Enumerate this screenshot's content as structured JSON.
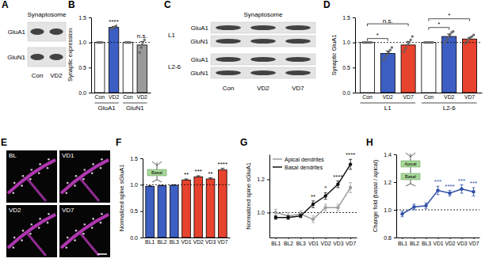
{
  "chart_data": [
    {
      "type": "bar",
      "title": "B",
      "ylabel": "Synaptic expression",
      "categories": [
        "Con",
        "VD2",
        "Con",
        "VD2"
      ],
      "group_labels": [
        "GluA1",
        "GluN1"
      ],
      "values": [
        1,
        1.3,
        1,
        0.95
      ],
      "errors": [
        0,
        0.02,
        0,
        0.07
      ],
      "points": [
        [
          1,
          1,
          1,
          1
        ],
        [
          1.27,
          1.29,
          1.31,
          1.33
        ],
        [
          1,
          1,
          1,
          1
        ],
        [
          0.8,
          0.9,
          1,
          1.05
        ]
      ],
      "colors": [
        "#ffffff",
        "#3d5fc4",
        "#ffffff",
        "#9a9a9a"
      ],
      "ylim": [
        0,
        1.5
      ],
      "yticks": [
        {
          "value": 0,
          "label": "0.0"
        },
        0.5,
        {
          "value": 1,
          "label": "1.0"
        },
        1.5
      ],
      "reference_line": 1,
      "annotations": [
        {
          "text": "****",
          "at": 1
        },
        {
          "text": "n.s.",
          "at": 3
        }
      ]
    },
    {
      "type": "bar",
      "title": "D",
      "ylabel": "Synaptic GluA1",
      "categories": [
        "Con",
        "VD2",
        "VD7",
        "Con",
        "VD2",
        "VD7"
      ],
      "group_labels": [
        "L1",
        "L2-6"
      ],
      "values": [
        1,
        0.78,
        0.95,
        1,
        1.12,
        1.07
      ],
      "errors": [
        0,
        0.05,
        0.07,
        0,
        0.05,
        0.03
      ],
      "points": [
        [
          1,
          1,
          1,
          1,
          1,
          1
        ],
        [
          0.65,
          0.7,
          0.75,
          0.8,
          0.85,
          0.9
        ],
        [
          0.82,
          0.88,
          0.95,
          1,
          1.05,
          1.12
        ],
        [
          1,
          1,
          1,
          1,
          1,
          1
        ],
        [
          1,
          1.05,
          1.1,
          1.15,
          1.2,
          1.22
        ],
        [
          0.98,
          1.02,
          1.06,
          1.1,
          1.12,
          1.15
        ]
      ],
      "colors": [
        "#ffffff",
        "#3d5fc4",
        "#e8432e",
        "#ffffff",
        "#3d5fc4",
        "#e8432e"
      ],
      "ylim": [
        0,
        1.5
      ],
      "yticks": [
        {
          "value": 0,
          "label": "0.0"
        },
        0.5,
        {
          "value": 1,
          "label": "1.0"
        },
        1.5
      ],
      "reference_line": 1,
      "annotations": [
        {
          "text": "*",
          "from": 0,
          "to": 1
        },
        {
          "text": "n.s.",
          "from": 0,
          "to": 2
        },
        {
          "text": "*",
          "from": 3,
          "to": 4
        },
        {
          "text": "*",
          "from": 3,
          "to": 5
        }
      ]
    },
    {
      "type": "bar",
      "title": "F",
      "ylabel": "Normalized spine sGluA1",
      "categories": [
        "BL1",
        "BL2",
        "BL3",
        "VD1",
        "VD2",
        "VD3",
        "VD7"
      ],
      "values": [
        0.97,
        0.98,
        0.99,
        1.09,
        1.15,
        1.11,
        1.28
      ],
      "errors": [
        0.01,
        0.01,
        0.01,
        0.02,
        0.02,
        0.02,
        0.03
      ],
      "colors": [
        "#3d5fc4",
        "#3d5fc4",
        "#3d5fc4",
        "#e8432e",
        "#e8432e",
        "#e8432e",
        "#e8432e"
      ],
      "ylim": [
        0,
        1.5
      ],
      "yticks": [
        {
          "value": 0,
          "label": "0.0"
        },
        0.5,
        {
          "value": 1,
          "label": "1.0"
        },
        1.5
      ],
      "reference_line": 1,
      "icon_labels": [
        "Basal"
      ],
      "annotations": [
        {
          "text": "**",
          "at": 3
        },
        {
          "text": "***",
          "at": 4
        },
        {
          "text": "**",
          "at": 5
        },
        {
          "text": "****",
          "at": 6
        }
      ]
    },
    {
      "type": "line",
      "title": "G",
      "ylabel": "Normalized spine sGluA1",
      "categories": [
        "BL1",
        "BL2",
        "BL3",
        "VD1",
        "VD2",
        "VD3",
        "VD7"
      ],
      "series": [
        {
          "name": "Apical dendrites",
          "color": "#9e9e9e",
          "marker": "circle",
          "line_style": "solid",
          "values": [
            1,
            0.98,
            0.99,
            0.96,
            1.03,
            1.03,
            1.15
          ],
          "errors": [
            0.02,
            0.02,
            0.02,
            0.02,
            0.02,
            0.02,
            0.03
          ]
        },
        {
          "name": "Basal dendrites",
          "color": "#111111",
          "marker": "circle",
          "line_style": "solid",
          "values": [
            0.97,
            0.97,
            0.98,
            1.05,
            1.1,
            1.17,
            1.29
          ],
          "errors": [
            0.01,
            0.01,
            0.01,
            0.02,
            0.02,
            0.02,
            0.03
          ]
        }
      ],
      "ylim": [
        0.85,
        1.35
      ],
      "yticks": [
        {
          "value": 1,
          "label": "1.0"
        },
        1.2
      ],
      "reference_line": 1,
      "legend": "top-left",
      "annotations": [
        {
          "text": "**",
          "at": 3
        },
        {
          "text": "*",
          "at": 4
        },
        {
          "text": "****",
          "at": 5
        },
        {
          "text": "****",
          "at": 6
        }
      ]
    },
    {
      "type": "line",
      "title": "H",
      "ylabel": "Change fold (basal / apical)",
      "categories": [
        "BL1",
        "BL2",
        "BL3",
        "VD1",
        "VD2",
        "VD3",
        "VD7"
      ],
      "series": [
        {
          "color": "#2f4fa8",
          "marker": "circle",
          "line_style": "solid",
          "values": [
            0.97,
            1.02,
            1.03,
            1.14,
            1.12,
            1.15,
            1.13
          ],
          "errors": [
            0.02,
            0.02,
            0.02,
            0.03,
            0.02,
            0.03,
            0.03
          ]
        }
      ],
      "ylim": [
        0.8,
        1.4
      ],
      "yticks": [
        0.8,
        {
          "value": 1,
          "label": "1.0"
        },
        1.2,
        1.4
      ],
      "reference_line": 1,
      "icon_labels": [
        "Apical",
        "Basal"
      ],
      "annotations": [
        {
          "text": "***",
          "at": 3
        },
        {
          "text": "****",
          "at": 4
        },
        {
          "text": "***",
          "at": 5
        },
        {
          "text": "***",
          "at": 6
        }
      ]
    }
  ],
  "blots": [
    {
      "panel": "A",
      "title": "Synaptosome",
      "rows": [
        "GluA1",
        "GluN1"
      ],
      "lanes": [
        "Con",
        "VD2"
      ]
    },
    {
      "panel": "C",
      "title": "Synaptosome",
      "groups": [
        {
          "label": "L1",
          "rows": [
            "GluA1",
            "GluN1"
          ]
        },
        {
          "label": "L2-6",
          "rows": [
            "GluA1",
            "GluN1"
          ]
        }
      ],
      "lanes": [
        "Con",
        "VD2",
        "VD7"
      ]
    }
  ],
  "micrographs": {
    "panel": "E",
    "labels": [
      "BL",
      "VD1",
      "VD2",
      "VD7"
    ]
  }
}
